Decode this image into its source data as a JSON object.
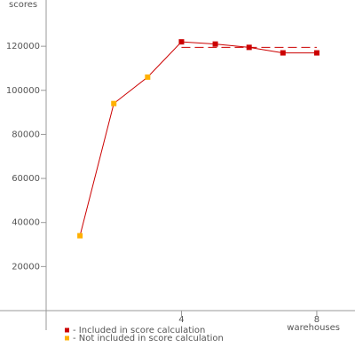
{
  "chart_data": {
    "type": "line",
    "y_label": "scores",
    "x_label": "warehouses",
    "x": [
      1,
      2,
      3,
      4,
      5,
      6,
      7,
      8
    ],
    "values": [
      34000,
      94000,
      106000,
      122000,
      121000,
      119500,
      117000,
      117000
    ],
    "included": [
      false,
      false,
      false,
      true,
      true,
      true,
      true,
      true
    ],
    "line_color": "#cc0000",
    "legend": [
      {
        "label": "- Included in score calculation",
        "color": "#cc0000"
      },
      {
        "label": "- Not included in score calculation",
        "color": "#ffb000"
      }
    ],
    "score_line": {
      "value": 119500,
      "x": [
        4,
        8
      ],
      "color": "#cc0000"
    },
    "xlim": [
      0,
      9.13
    ],
    "ylim": [
      0,
      141000
    ],
    "xticks": [
      4,
      8
    ],
    "yticks": [
      20000,
      40000,
      60000,
      80000,
      100000,
      120000
    ]
  }
}
